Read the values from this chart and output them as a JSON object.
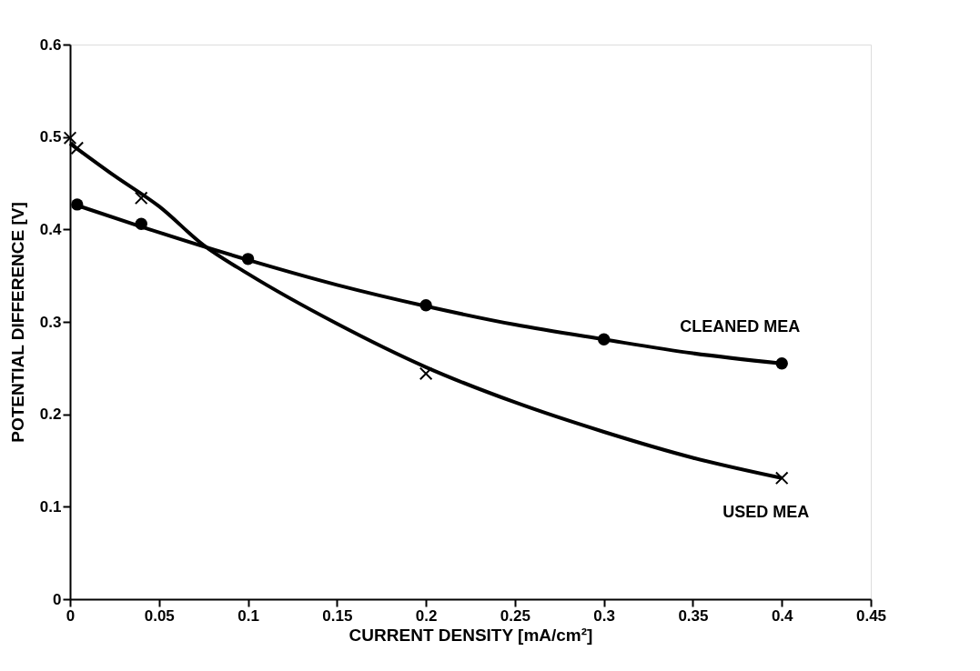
{
  "chart_data": {
    "type": "scatter",
    "xlabel": "CURRENT DENSITY [mA/cm²]",
    "ylabel": "POTENTIAL DIFFERENCE [V]",
    "xlim": [
      0,
      0.45
    ],
    "xticks": [
      0,
      0.05,
      0.1,
      0.15,
      0.2,
      0.25,
      0.3,
      0.35,
      0.4,
      0.45
    ],
    "ylim": [
      0,
      0.6
    ],
    "yticks": [
      0,
      0.1,
      0.2,
      0.3,
      0.4,
      0.5,
      0.6
    ],
    "grid": false,
    "series": [
      {
        "name": "CLEANED  MEA",
        "marker": "circle",
        "color": "#000000",
        "x": [
          0.004,
          0.04,
          0.1,
          0.2,
          0.3,
          0.4
        ],
        "values": [
          0.427,
          0.406,
          0.368,
          0.318,
          0.281,
          0.255
        ]
      },
      {
        "name": "USED  MEA",
        "marker": "cross",
        "color": "#000000",
        "x": [
          0,
          0.004,
          0.04,
          0.2,
          0.4
        ],
        "values": [
          0.499,
          0.488,
          0.434,
          0.244,
          0.131
        ]
      },
      {
        "type": "line",
        "marker": "none",
        "line_style": "solid",
        "color": "#000000",
        "x": [
          0.004,
          0.04,
          0.1,
          0.15,
          0.2,
          0.25,
          0.3,
          0.35,
          0.4
        ],
        "values": [
          0.426,
          0.403,
          0.367,
          0.34,
          0.317,
          0.297,
          0.281,
          0.266,
          0.255
        ]
      },
      {
        "type": "line",
        "marker": "none",
        "line_style": "solid",
        "color": "#000000",
        "x": [
          0,
          0.025,
          0.05,
          0.075,
          0.1,
          0.15,
          0.2,
          0.25,
          0.3,
          0.35,
          0.4
        ],
        "values": [
          0.493,
          0.458,
          0.425,
          0.383,
          0.352,
          0.298,
          0.251,
          0.213,
          0.181,
          0.153,
          0.131
        ]
      }
    ]
  }
}
